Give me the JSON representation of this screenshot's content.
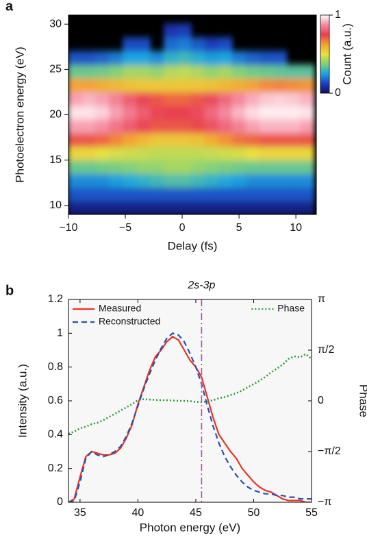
{
  "chart_data": [
    {
      "type": "heatmap",
      "panel_label": "a",
      "xlabel": "Delay (fs)",
      "ylabel": "Photoelectron energy (eV)",
      "colorbar_label": "Count (a.u.)",
      "x": [
        -9.4,
        -8.2,
        -7,
        -5.8,
        -4.6,
        -3.4,
        -2.2,
        -1,
        0.2,
        1.4,
        2.6,
        3.8,
        5,
        6.2,
        7.4,
        8.6,
        9.8,
        11
      ],
      "y": [
        9.75,
        11.25,
        12.75,
        14.25,
        15.75,
        17.25,
        18.75,
        20.25,
        21.75,
        23.25,
        24.75,
        26.25,
        27.75,
        29.25,
        30.75
      ],
      "z": [
        [
          0.05,
          0.05,
          0.05,
          0.05,
          0.05,
          0.05,
          0.05,
          0.05,
          0.05,
          0.05,
          0.05,
          0.05,
          0.05,
          0.05,
          0.05,
          0.05,
          0.05,
          0.05
        ],
        [
          0.15,
          0.15,
          0.15,
          0.15,
          0.15,
          0.15,
          0.15,
          0.15,
          0.15,
          0.15,
          0.15,
          0.15,
          0.15,
          0.15,
          0.15,
          0.15,
          0.15,
          0.15
        ],
        [
          0.22,
          0.22,
          0.22,
          0.24,
          0.26,
          0.28,
          0.3,
          0.32,
          0.32,
          0.3,
          0.28,
          0.26,
          0.24,
          0.22,
          0.22,
          0.22,
          0.22,
          0.22
        ],
        [
          0.35,
          0.35,
          0.36,
          0.37,
          0.38,
          0.4,
          0.4,
          0.42,
          0.42,
          0.4,
          0.38,
          0.37,
          0.36,
          0.35,
          0.35,
          0.35,
          0.35,
          0.35
        ],
        [
          0.52,
          0.52,
          0.5,
          0.48,
          0.47,
          0.46,
          0.45,
          0.45,
          0.45,
          0.45,
          0.46,
          0.47,
          0.48,
          0.5,
          0.52,
          0.52,
          0.52,
          0.52
        ],
        [
          0.72,
          0.72,
          0.7,
          0.66,
          0.62,
          0.58,
          0.55,
          0.55,
          0.55,
          0.56,
          0.6,
          0.64,
          0.68,
          0.7,
          0.72,
          0.72,
          0.72,
          0.72
        ],
        [
          0.9,
          0.9,
          0.88,
          0.84,
          0.8,
          0.76,
          0.72,
          0.72,
          0.72,
          0.74,
          0.78,
          0.82,
          0.86,
          0.9,
          0.92,
          0.92,
          0.92,
          0.9
        ],
        [
          0.97,
          0.97,
          0.95,
          0.9,
          0.85,
          0.8,
          0.76,
          0.75,
          0.75,
          0.77,
          0.82,
          0.87,
          0.92,
          0.96,
          0.98,
          0.98,
          0.98,
          0.97
        ],
        [
          0.9,
          0.92,
          0.9,
          0.86,
          0.8,
          0.76,
          0.72,
          0.7,
          0.7,
          0.72,
          0.77,
          0.82,
          0.87,
          0.91,
          0.94,
          0.95,
          0.94,
          0.92
        ],
        [
          0.62,
          0.62,
          0.6,
          0.58,
          0.56,
          0.55,
          0.55,
          0.55,
          0.55,
          0.55,
          0.56,
          0.58,
          0.6,
          0.62,
          0.65,
          0.66,
          0.65,
          0.64
        ],
        [
          0.35,
          0.35,
          0.36,
          0.38,
          0.42,
          0.42,
          0.4,
          0.44,
          0.45,
          0.43,
          0.4,
          0.42,
          0.38,
          0.36,
          0.35,
          0.34,
          0.33,
          0.33
        ],
        [
          0.15,
          0.15,
          0.17,
          0.2,
          0.25,
          0.25,
          0.22,
          0.28,
          0.3,
          0.27,
          0.24,
          0.25,
          0.2,
          0.17,
          0.15,
          0.15,
          null,
          null
        ],
        [
          null,
          null,
          null,
          null,
          0.14,
          0.14,
          null,
          0.18,
          0.2,
          0.16,
          0.12,
          0.14,
          null,
          null,
          null,
          null,
          null,
          null
        ],
        [
          null,
          null,
          null,
          null,
          null,
          null,
          null,
          0.1,
          0.12,
          null,
          null,
          null,
          null,
          null,
          null,
          null,
          null,
          null
        ],
        [
          null,
          null,
          null,
          null,
          null,
          null,
          null,
          null,
          null,
          null,
          null,
          null,
          null,
          null,
          null,
          null,
          null,
          null
        ]
      ],
      "xlim": [
        -10,
        11.8
      ],
      "ylim": [
        9,
        31
      ],
      "zlim": [
        0,
        1
      ],
      "xticks": [
        {
          "value": -10,
          "label": "−10"
        },
        {
          "value": -5,
          "label": "−5"
        },
        0,
        5,
        10
      ],
      "yticks": [
        10,
        15,
        20,
        25,
        30
      ],
      "zticks": [
        0,
        1
      ],
      "background": "#000000",
      "colorscale": [
        "#101060",
        "#1f3fbf",
        "#1aa6e0",
        "#7fd07a",
        "#e8e040",
        "#f5a030",
        "#e84050",
        "#f58aa0",
        "#ffffff"
      ]
    },
    {
      "type": "line",
      "panel_label": "b",
      "xlabel": "Photon energy (eV)",
      "ylabel": "Intensity (a.u.)",
      "y2label": "Phase",
      "x": [
        34,
        34.5,
        35,
        35.5,
        36,
        36.5,
        37,
        37.5,
        38,
        38.5,
        39,
        39.5,
        40,
        40.5,
        41,
        41.5,
        42,
        42.5,
        43,
        43.5,
        44,
        44.5,
        45,
        45.5,
        46,
        46.5,
        47,
        47.5,
        48,
        48.5,
        49,
        49.5,
        50,
        50.5,
        51,
        51.5,
        52,
        52.5,
        53,
        53.5,
        54,
        54.5,
        55
      ],
      "series": [
        {
          "name": "Measured",
          "color": "#e8322a",
          "linestyle": "solid",
          "values": [
            0,
            0.02,
            0.15,
            0.27,
            0.3,
            0.29,
            0.28,
            0.28,
            0.29,
            0.32,
            0.38,
            0.46,
            0.58,
            0.68,
            0.78,
            0.86,
            0.9,
            0.95,
            0.98,
            0.96,
            0.9,
            0.84,
            0.8,
            0.74,
            0.62,
            0.5,
            0.4,
            0.35,
            0.3,
            0.26,
            0.2,
            0.16,
            0.12,
            0.09,
            0.07,
            0.06,
            0.04,
            0.02,
            0.01,
            0.01,
            0.01,
            0,
            0
          ]
        },
        {
          "name": "Reconstructed",
          "color": "#2f4fa8",
          "linestyle": "dashed",
          "values": [
            0,
            0.01,
            0.12,
            0.26,
            0.3,
            0.28,
            0.27,
            0.28,
            0.3,
            0.33,
            0.39,
            0.47,
            0.57,
            0.67,
            0.76,
            0.84,
            0.91,
            0.97,
            1.0,
            0.99,
            0.95,
            0.88,
            0.8,
            0.7,
            0.57,
            0.45,
            0.35,
            0.27,
            0.21,
            0.16,
            0.12,
            0.09,
            0.07,
            0.06,
            0.05,
            0.05,
            0.04,
            0.04,
            0.03,
            0.03,
            0.02,
            0.02,
            0.02
          ]
        },
        {
          "name": "Phase",
          "color": "#2a9a3a",
          "linestyle": "dotted",
          "axis": "y2",
          "values": [
            -1.02,
            -0.95,
            -0.85,
            -0.8,
            -0.72,
            -0.68,
            -0.6,
            -0.5,
            -0.4,
            -0.3,
            -0.2,
            -0.1,
            0.02,
            0.05,
            0.04,
            0.03,
            0.02,
            0.02,
            0.01,
            0,
            0,
            -0.01,
            -0.03,
            -0.04,
            -0.02,
            0.02,
            0.08,
            0.12,
            0.18,
            0.24,
            0.32,
            0.42,
            0.52,
            0.62,
            0.74,
            0.88,
            1.0,
            1.12,
            1.3,
            1.38,
            1.35,
            1.45,
            1.3
          ]
        }
      ],
      "vline": {
        "x": 45.5,
        "label": "2s-3p",
        "color": "#c040c0",
        "linestyle": "dashdot"
      },
      "xlim": [
        34,
        55
      ],
      "ylim": [
        0,
        1.2
      ],
      "y2lim": [
        -3.14159,
        3.14159
      ],
      "xticks": [
        35,
        40,
        45,
        50,
        55
      ],
      "yticks": [
        0,
        0.2,
        0.4,
        0.6,
        0.8,
        1,
        1.2
      ],
      "y2ticks": [
        {
          "value": -3.14159,
          "label": "−π"
        },
        {
          "value": -1.5708,
          "label": "−π/2"
        },
        0,
        {
          "value": 1.5708,
          "label": "π/2"
        },
        {
          "value": 3.14159,
          "label": "π"
        }
      ],
      "legend": "upper left",
      "legend_y2": "upper right",
      "background": "#f7f7f7"
    }
  ]
}
